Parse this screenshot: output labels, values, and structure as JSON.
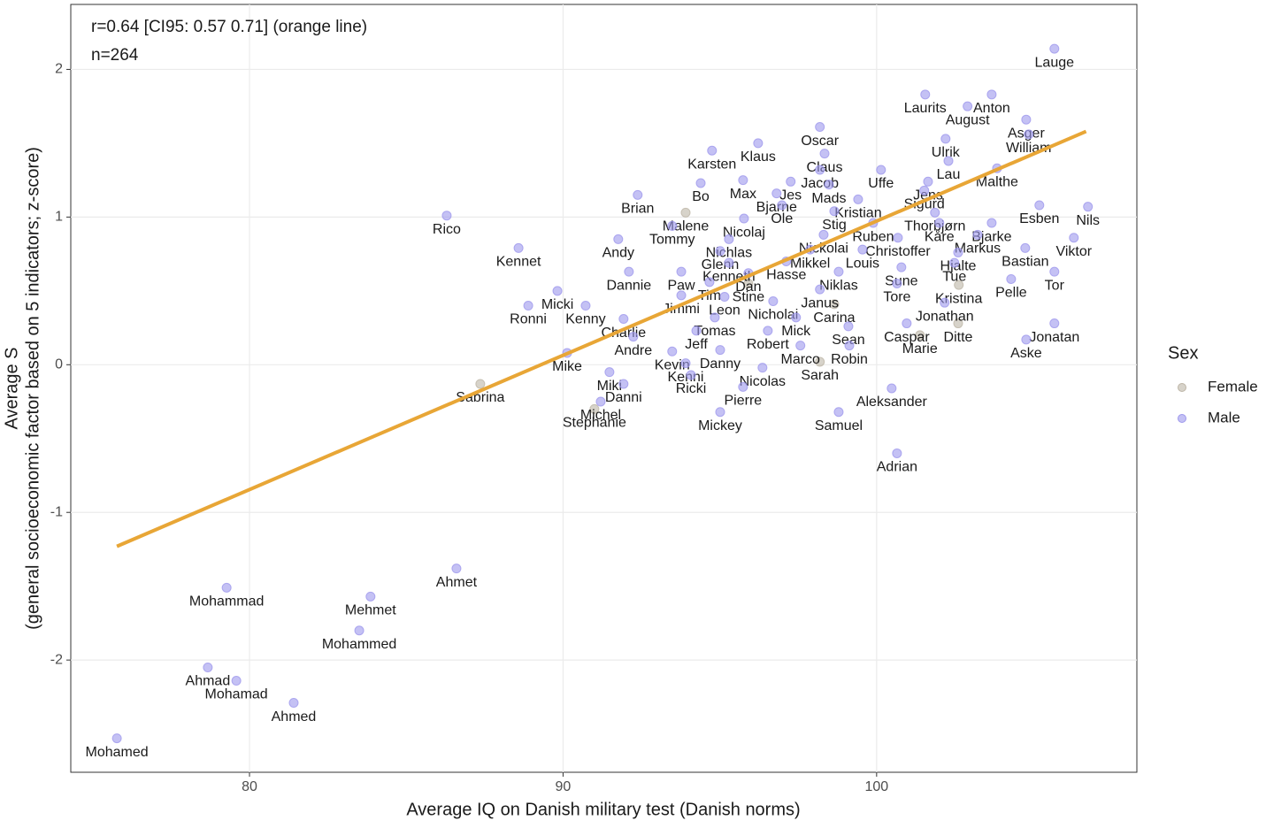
{
  "chart_data": {
    "type": "scatter",
    "annotations": [
      "r=0.64 [CI95: 0.57 0.71] (orange line)",
      "n=264"
    ],
    "x_label": "Average IQ on Danish military test (Danish norms)",
    "y_label": [
      "Average S",
      "(general socioeconomic factor based on 5 indicators; z-score)"
    ],
    "xlim": [
      74.3,
      108.3
    ],
    "ylim": [
      -2.76,
      2.44
    ],
    "xticks": [
      80,
      90,
      100
    ],
    "yticks": [
      -2,
      -1,
      0,
      1,
      2
    ],
    "grid": true,
    "legend_title": "Sex",
    "legend_position": "right",
    "fit_line": {
      "color": "#e8a636",
      "x": [
        75.77,
        106.68
      ],
      "values": [
        -1.23,
        1.58
      ]
    },
    "series": [
      {
        "name": "Female",
        "color": "#bdb5a6",
        "labels": [
          "Malene",
          "Stine",
          "Carina",
          "Kristina",
          "Marie",
          "Ditte",
          "Sarah",
          "Sabrina",
          "Stephanie"
        ],
        "x": [
          93.91,
          95.91,
          98.65,
          102.62,
          101.38,
          102.6,
          98.19,
          87.36,
          91.0
        ],
        "values": [
          1.03,
          0.55,
          0.41,
          0.54,
          0.2,
          0.28,
          0.02,
          -0.13,
          -0.3
        ]
      },
      {
        "name": "Male",
        "color": "#9d97ec",
        "labels": [
          "Lauge",
          "Laurits",
          "Anton",
          "August",
          "Asger",
          "William",
          "Oscar",
          "Karsten",
          "Klaus",
          "Ulrik",
          "Claus",
          "Lau",
          "Jacob",
          "Uffe",
          "Malthe",
          "Bo",
          "Max",
          "Jes",
          "Jens",
          "Mads",
          "Sigurd",
          "Bjarne",
          "Brian",
          "Kristian",
          "Ole",
          "Stig",
          "Esben",
          "Nils",
          "Rico",
          "Thorbjørn",
          "Nicolaj",
          "Tommy",
          "Ruben",
          "Kåre",
          "Bjarke",
          "Nickolai",
          "Markus",
          "Viktor",
          "Christoffer",
          "Nichlas",
          "Andy",
          "Mikkel",
          "Louis",
          "Kennet",
          "Glenn",
          "Bastian",
          "Hjalte",
          "Hasse",
          "Kenneth",
          "Tue",
          "Dannie",
          "Paw",
          "Niklas",
          "Sune",
          "Tor",
          "Dan",
          "Tim",
          "Tore",
          "Pelle",
          "Micki",
          "Janus",
          "Jimmi",
          "Leon",
          "Nicholai",
          "Jonathan",
          "Kenny",
          "Ronni",
          "Tomas",
          "Mick",
          "Charlie",
          "Caspar",
          "Jonatan",
          "Jeff",
          "Robert",
          "Sean",
          "Andre",
          "Aske",
          "Marco",
          "Robin",
          "Danny",
          "Kevin",
          "Mike",
          "Kenni",
          "Nicolas",
          "Miki",
          "Ricki",
          "Danni",
          "Pierre",
          "Aleksander",
          "Michel",
          "Samuel",
          "Mickey",
          "Adrian",
          "Ahmet",
          "Mohammad",
          "Mehmet",
          "Mohammed",
          "Ahmad",
          "Mohamad",
          "Ahmed",
          "Mohamed"
        ],
        "x": [
          105.67,
          101.55,
          103.67,
          102.9,
          104.77,
          104.85,
          98.19,
          94.75,
          96.22,
          102.2,
          98.34,
          102.29,
          98.19,
          100.14,
          103.84,
          94.39,
          95.74,
          97.26,
          101.64,
          98.48,
          101.52,
          96.81,
          92.38,
          99.41,
          96.98,
          98.65,
          105.19,
          106.74,
          86.29,
          101.86,
          95.77,
          93.48,
          99.89,
          102.0,
          103.67,
          98.31,
          103.22,
          106.29,
          100.68,
          95.29,
          91.76,
          97.88,
          99.55,
          88.58,
          95.01,
          104.74,
          102.6,
          97.12,
          95.29,
          102.48,
          92.1,
          93.77,
          98.79,
          100.79,
          105.67,
          95.91,
          94.67,
          100.65,
          104.29,
          89.82,
          98.19,
          93.77,
          95.15,
          96.7,
          102.17,
          90.72,
          88.89,
          94.84,
          97.43,
          91.93,
          100.96,
          105.67,
          94.25,
          96.53,
          99.1,
          92.24,
          104.77,
          97.57,
          99.13,
          95.01,
          93.48,
          90.13,
          93.91,
          96.36,
          91.48,
          94.08,
          91.93,
          95.74,
          100.48,
          91.2,
          98.79,
          95.01,
          100.65,
          86.6,
          79.27,
          83.86,
          83.5,
          78.67,
          79.58,
          81.41,
          75.77
        ],
        "values": [
          2.14,
          1.83,
          1.83,
          1.75,
          1.66,
          1.56,
          1.61,
          1.45,
          1.5,
          1.53,
          1.43,
          1.38,
          1.32,
          1.32,
          1.33,
          1.23,
          1.25,
          1.24,
          1.24,
          1.22,
          1.18,
          1.16,
          1.15,
          1.12,
          1.08,
          1.04,
          1.08,
          1.07,
          1.01,
          1.03,
          0.99,
          0.94,
          0.96,
          0.96,
          0.96,
          0.88,
          0.88,
          0.86,
          0.86,
          0.85,
          0.85,
          0.78,
          0.78,
          0.79,
          0.77,
          0.79,
          0.76,
          0.7,
          0.69,
          0.69,
          0.63,
          0.63,
          0.63,
          0.66,
          0.63,
          0.62,
          0.56,
          0.55,
          0.58,
          0.5,
          0.51,
          0.47,
          0.46,
          0.43,
          0.42,
          0.4,
          0.4,
          0.32,
          0.32,
          0.31,
          0.28,
          0.28,
          0.23,
          0.23,
          0.26,
          0.19,
          0.17,
          0.13,
          0.13,
          0.1,
          0.09,
          0.08,
          0.01,
          -0.02,
          -0.05,
          -0.07,
          -0.13,
          -0.15,
          -0.16,
          -0.25,
          -0.32,
          -0.32,
          -0.6,
          -1.38,
          -1.51,
          -1.57,
          -1.8,
          -2.05,
          -2.14,
          -2.29,
          -2.53
        ]
      }
    ]
  }
}
